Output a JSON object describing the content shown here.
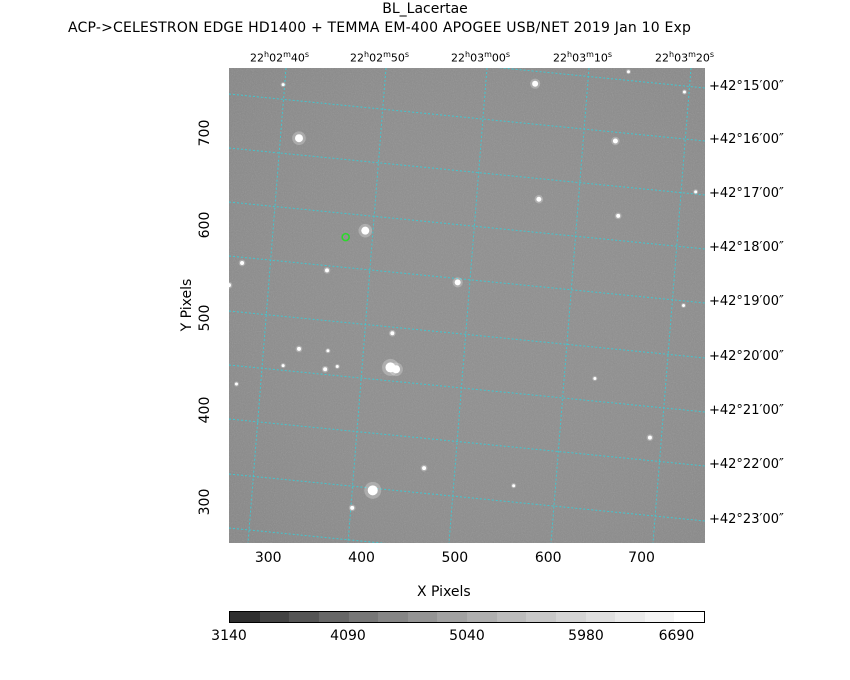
{
  "title": "BL_Lacertae",
  "subtitle": "ACP->CELESTRON EDGE HD1400 + TEMMA EM-400 APOGEE USB/NET   2019 Jan 10    Exp",
  "axes": {
    "xlabel": "X Pixels",
    "ylabel": "Y Pixels",
    "x_ticks": [
      "300",
      "400",
      "500",
      "600",
      "700"
    ],
    "y_ticks": [
      "300",
      "400",
      "500",
      "600",
      "700"
    ],
    "xlim": [
      258,
      768
    ],
    "ylim": [
      256,
      770
    ]
  },
  "ra_ticks": [
    {
      "h": "22",
      "m": "02",
      "s": "40"
    },
    {
      "h": "22",
      "m": "02",
      "s": "50"
    },
    {
      "h": "22",
      "m": "03",
      "s": "00"
    },
    {
      "h": "22",
      "m": "03",
      "s": "10"
    },
    {
      "h": "22",
      "m": "03",
      "s": "20"
    }
  ],
  "dec_ticks": [
    "+42°15′00″",
    "+42°16′00″",
    "+42°17′00″",
    "+42°18′00″",
    "+42°19′00″",
    "+42°20′00″",
    "+42°21′00″",
    "+42°22′00″",
    "+42°23′00″"
  ],
  "colorbar": {
    "labels": [
      "3140",
      "4090",
      "5040",
      "5980",
      "6690"
    ],
    "colors": [
      "#2e2e2e",
      "#434343",
      "#555555",
      "#676767",
      "#777777",
      "#868686",
      "#949494",
      "#a2a2a2",
      "#afafaf",
      "#bcbcbc",
      "#c8c8c8",
      "#d4d4d4",
      "#dfdfdf",
      "#eaeaea",
      "#f4f4f4",
      "#ffffff"
    ]
  },
  "colors": {
    "background": "#8e8e8e",
    "grid": "#41c6cf",
    "target": "#2bd92b"
  },
  "stars": [
    {
      "x": 404,
      "y": 594,
      "r": 4
    },
    {
      "x": 333,
      "y": 694,
      "r": 4
    },
    {
      "x": 503,
      "y": 538,
      "r": 3
    },
    {
      "x": 431,
      "y": 446,
      "r": 5
    },
    {
      "x": 437,
      "y": 444,
      "r": 4
    },
    {
      "x": 412,
      "y": 313,
      "r": 5
    },
    {
      "x": 586,
      "y": 753,
      "r": 3
    },
    {
      "x": 590,
      "y": 628,
      "r": 2.5
    },
    {
      "x": 672,
      "y": 691,
      "r": 2.5
    },
    {
      "x": 675,
      "y": 610,
      "r": 2
    },
    {
      "x": 433,
      "y": 483,
      "r": 2
    },
    {
      "x": 363,
      "y": 551,
      "r": 2
    },
    {
      "x": 333,
      "y": 466,
      "r": 2
    },
    {
      "x": 361,
      "y": 444,
      "r": 2
    },
    {
      "x": 374,
      "y": 447,
      "r": 1.5
    },
    {
      "x": 316,
      "y": 448,
      "r": 1.5
    },
    {
      "x": 390,
      "y": 294,
      "r": 2
    },
    {
      "x": 467,
      "y": 337,
      "r": 2
    },
    {
      "x": 650,
      "y": 434,
      "r": 1.5
    },
    {
      "x": 709,
      "y": 370,
      "r": 2
    },
    {
      "x": 563,
      "y": 318,
      "r": 1.5
    },
    {
      "x": 272,
      "y": 559,
      "r": 2
    },
    {
      "x": 745,
      "y": 513,
      "r": 1.5
    },
    {
      "x": 758,
      "y": 636,
      "r": 1.5
    },
    {
      "x": 316,
      "y": 752,
      "r": 1.5
    },
    {
      "x": 686,
      "y": 766,
      "r": 1.5
    },
    {
      "x": 746,
      "y": 744,
      "r": 1.5
    },
    {
      "x": 364,
      "y": 464,
      "r": 1.5
    },
    {
      "x": 266,
      "y": 428,
      "r": 1.5
    },
    {
      "x": 258,
      "y": 535,
      "r": 2
    }
  ],
  "target": {
    "x": 383,
    "y": 587
  }
}
